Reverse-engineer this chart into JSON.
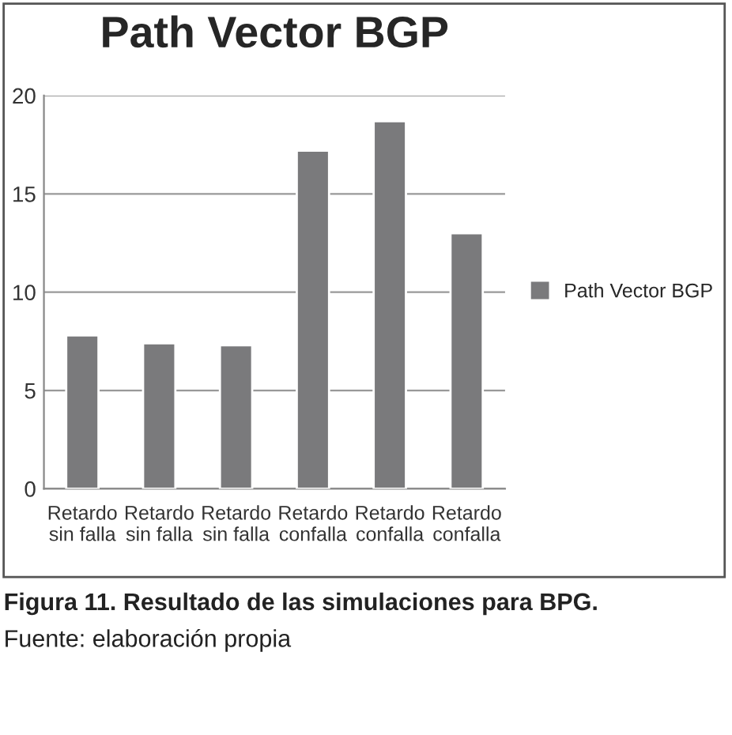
{
  "chart_data": {
    "type": "bar",
    "title": "Path Vector BGP",
    "categories": [
      "Retardo\nsin falla",
      "Retardo\nsin falla",
      "Retardo\nsin falla",
      "Retardo\nconfalla",
      "Retardo\nconfalla",
      "Retardo\nconfalla"
    ],
    "series": [
      {
        "name": "Path Vector BGP",
        "color": "#7a7a7c",
        "values": [
          7.8,
          7.4,
          7.3,
          17.2,
          18.7,
          13
        ]
      }
    ],
    "ylim": [
      0,
      20
    ],
    "yticks": [
      0,
      5,
      10,
      15,
      20
    ],
    "grid": "y",
    "legend": "right",
    "annotations": [
      "Figura 11. Resultado de las simulaciones para BPG.",
      "Fuente: elaboración propia"
    ]
  }
}
